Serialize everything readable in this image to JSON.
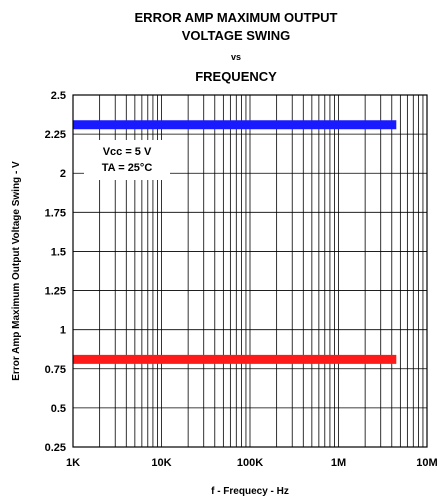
{
  "chart_data": {
    "type": "line",
    "title_lines": [
      "ERROR AMP MAXIMUM OUTPUT",
      "VOLTAGE SWING",
      "vs",
      "FREQUENCY"
    ],
    "xlabel": "f - Frequecy - Hz",
    "ylabel": "Error Amp Maximum Output Voltage Swing - V",
    "x_scale": "log",
    "xlim": [
      1000,
      10000000
    ],
    "ylim": [
      0.25,
      2.5
    ],
    "x_ticks": [
      1000,
      10000,
      100000,
      1000000,
      10000000
    ],
    "x_tick_labels": [
      "1K",
      "10K",
      "100K",
      "1M",
      "10M"
    ],
    "y_ticks": [
      0.25,
      0.5,
      0.75,
      1,
      1.25,
      1.5,
      1.75,
      2,
      2.25,
      2.5
    ],
    "y_tick_labels": [
      "0.25",
      "0.5",
      "0.75",
      "1",
      "1.25",
      "1.5",
      "1.75",
      "2",
      "2.25",
      "2.5"
    ],
    "grid": true,
    "series": [
      {
        "color": "#1a1aff",
        "x": [
          1000,
          4500000
        ],
        "y": [
          2.31,
          2.31
        ]
      },
      {
        "color": "#ff1a1a",
        "x": [
          1000,
          4500000
        ],
        "y": [
          0.81,
          0.81
        ]
      }
    ],
    "annotation_lines": [
      "Vcc = 5 V",
      "TA = 25°C"
    ]
  }
}
